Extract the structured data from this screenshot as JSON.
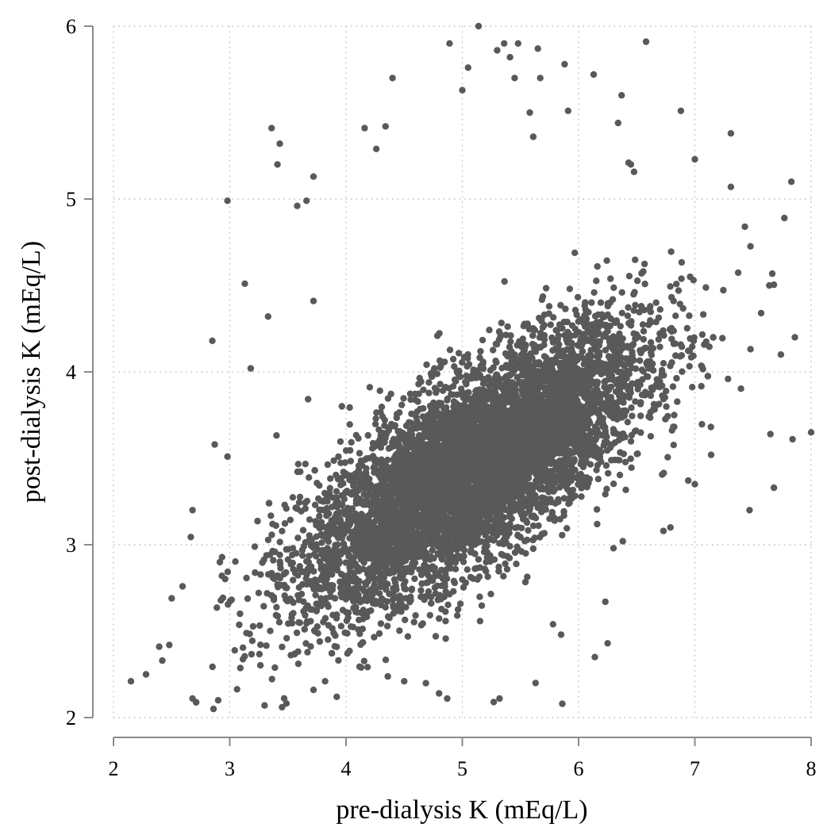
{
  "chart_data": {
    "type": "scatter",
    "title": "",
    "xlabel": "pre-dialysis K (mEq/L)",
    "ylabel": "post-dialysis K (mEq/L)",
    "xlim": [
      2,
      8
    ],
    "ylim": [
      2,
      6
    ],
    "x_ticks": [
      "2",
      "3",
      "4",
      "5",
      "6",
      "7",
      "8"
    ],
    "y_ticks": [
      "2",
      "3",
      "4",
      "5",
      "6"
    ],
    "grid": true,
    "marker_color": "#595959",
    "distribution": {
      "description_points": "dense cloud centered near (5.2, 3.5), positive correlation",
      "mean_x": 5.1,
      "mean_y": 3.45,
      "slope": 0.4,
      "sd_x": 0.72,
      "sd_y_resid": 0.27
    },
    "outliers": [
      [
        2.15,
        2.21
      ],
      [
        2.28,
        2.25
      ],
      [
        2.68,
        2.11
      ],
      [
        2.86,
        2.05
      ],
      [
        2.9,
        2.1
      ],
      [
        2.98,
        4.99
      ],
      [
        2.85,
        4.18
      ],
      [
        3.13,
        4.51
      ],
      [
        3.18,
        4.02
      ],
      [
        3.33,
        4.32
      ],
      [
        3.36,
        5.41
      ],
      [
        3.41,
        5.2
      ],
      [
        3.43,
        5.32
      ],
      [
        3.58,
        4.96
      ],
      [
        3.66,
        4.99
      ],
      [
        3.72,
        5.13
      ],
      [
        3.72,
        4.41
      ],
      [
        3.45,
        2.06
      ],
      [
        3.3,
        2.07
      ],
      [
        3.72,
        2.16
      ],
      [
        4.16,
        5.41
      ],
      [
        4.34,
        5.42
      ],
      [
        4.26,
        5.29
      ],
      [
        4.4,
        5.7
      ],
      [
        4.89,
        5.9
      ],
      [
        5.0,
        5.63
      ],
      [
        5.14,
        6.0
      ],
      [
        5.05,
        5.76
      ],
      [
        5.3,
        5.86
      ],
      [
        5.36,
        5.9
      ],
      [
        5.48,
        5.9
      ],
      [
        5.41,
        5.82
      ],
      [
        5.45,
        5.7
      ],
      [
        5.65,
        5.87
      ],
      [
        5.67,
        5.7
      ],
      [
        5.88,
        5.78
      ],
      [
        6.13,
        5.72
      ],
      [
        6.58,
        5.91
      ],
      [
        6.37,
        5.6
      ],
      [
        6.34,
        5.44
      ],
      [
        5.58,
        5.5
      ],
      [
        5.61,
        5.36
      ],
      [
        5.91,
        5.51
      ],
      [
        6.88,
        5.51
      ],
      [
        7.31,
        5.38
      ],
      [
        7.0,
        5.23
      ],
      [
        7.31,
        5.07
      ],
      [
        7.83,
        5.1
      ],
      [
        6.45,
        5.2
      ],
      [
        6.43,
        5.21
      ],
      [
        4.87,
        2.11
      ],
      [
        4.8,
        2.14
      ],
      [
        5.27,
        2.09
      ],
      [
        5.32,
        2.11
      ],
      [
        5.86,
        2.08
      ],
      [
        5.63,
        2.2
      ],
      [
        6.14,
        2.35
      ],
      [
        6.25,
        2.43
      ],
      [
        5.78,
        2.54
      ],
      [
        5.85,
        2.48
      ],
      [
        6.23,
        2.67
      ],
      [
        6.38,
        3.02
      ],
      [
        6.3,
        2.98
      ],
      [
        7.47,
        3.2
      ],
      [
        7.65,
        3.64
      ],
      [
        7.68,
        3.33
      ],
      [
        7.84,
        3.61
      ],
      [
        8.0,
        3.65
      ],
      [
        7.86,
        4.2
      ],
      [
        7.74,
        4.1
      ],
      [
        7.77,
        4.89
      ],
      [
        7.64,
        4.5
      ],
      [
        7.57,
        4.34
      ],
      [
        7.43,
        4.84
      ],
      [
        4.5,
        2.21
      ],
      [
        4.13,
        2.29
      ],
      [
        3.82,
        2.21
      ],
      [
        3.92,
        2.12
      ],
      [
        2.68,
        3.2
      ],
      [
        2.87,
        3.58
      ],
      [
        2.98,
        3.51
      ],
      [
        2.5,
        2.69
      ],
      [
        2.48,
        2.42
      ],
      [
        2.42,
        2.33
      ],
      [
        6.73,
        3.08
      ],
      [
        6.79,
        3.1
      ],
      [
        7.14,
        3.52
      ],
      [
        7.0,
        3.35
      ],
      [
        6.86,
        4.47
      ],
      [
        6.96,
        4.55
      ]
    ]
  }
}
